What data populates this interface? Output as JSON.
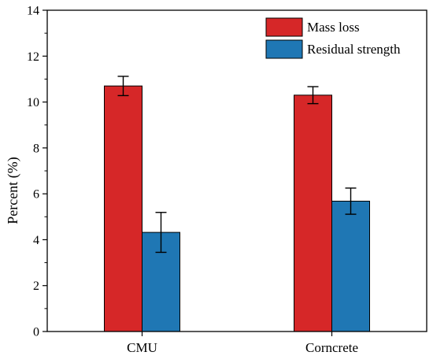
{
  "chart_data": {
    "type": "bar",
    "title": "",
    "xlabel": "",
    "ylabel": "Percent (%)",
    "ylim": [
      0,
      14
    ],
    "yticks": [
      0,
      2,
      4,
      6,
      8,
      10,
      12,
      14
    ],
    "categories": [
      "CMU",
      "Corncrete"
    ],
    "series": [
      {
        "name": "Mass loss",
        "values": [
          10.7,
          10.3
        ],
        "errors": [
          0.42,
          0.37
        ],
        "color": "#d62728"
      },
      {
        "name": "Residual strength",
        "values": [
          4.32,
          5.68
        ],
        "errors": [
          0.87,
          0.57
        ],
        "color": "#1f77b4"
      }
    ],
    "grid": false,
    "legend_position": "top-right"
  }
}
